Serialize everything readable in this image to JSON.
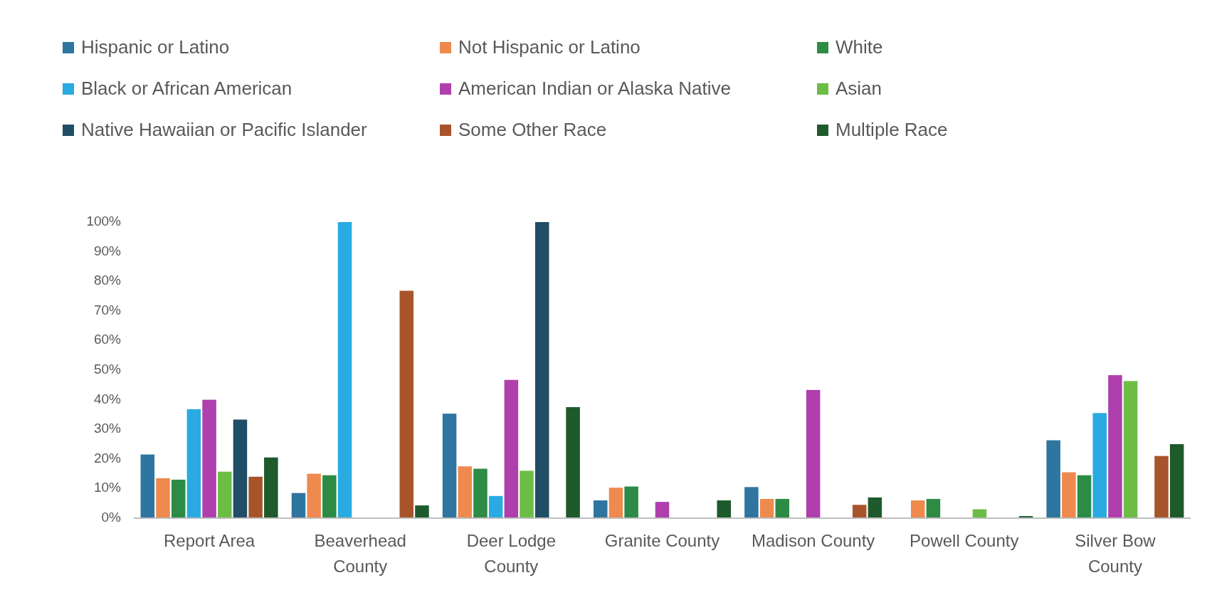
{
  "chart_data": {
    "type": "bar",
    "categories": [
      "Report Area",
      "Beaverhead County",
      "Deer Lodge County",
      "Granite County",
      "Madison County",
      "Powell County",
      "Silver Bow County"
    ],
    "series": [
      {
        "name": "Hispanic or Latino",
        "color": "#2e75a0",
        "values": [
          21.5,
          8.5,
          35.3,
          6,
          10.5,
          0,
          26.3
        ]
      },
      {
        "name": "Not Hispanic or Latino",
        "color": "#ee8a4e",
        "values": [
          13.5,
          15,
          17.5,
          10.3,
          6.5,
          6,
          15.5
        ]
      },
      {
        "name": "White",
        "color": "#2e8b45",
        "values": [
          13,
          14.5,
          16.7,
          10.7,
          6.5,
          6.5,
          14.5
        ]
      },
      {
        "name": "Black or African American",
        "color": "#29abe2",
        "values": [
          36.8,
          100,
          7.5,
          0,
          0,
          0,
          35.5
        ]
      },
      {
        "name": "American Indian or Alaska Native",
        "color": "#b03fae",
        "values": [
          40,
          0,
          46.7,
          5.5,
          43.3,
          0,
          48.3
        ]
      },
      {
        "name": "Asian",
        "color": "#6cbd45",
        "values": [
          15.7,
          0,
          16,
          0,
          0,
          3,
          46.3
        ]
      },
      {
        "name": "Native Hawaiian or Pacific Islander",
        "color": "#1f4e66",
        "values": [
          33.3,
          0,
          100,
          0,
          0,
          0,
          0
        ]
      },
      {
        "name": "Some Other Race",
        "color": "#a8542a",
        "values": [
          14,
          76.8,
          0,
          0,
          4.5,
          0,
          21
        ]
      },
      {
        "name": "Multiple Race",
        "color": "#1e5a2c",
        "values": [
          20.5,
          4.3,
          37.5,
          6,
          7,
          0.7,
          25
        ]
      }
    ],
    "ylim": [
      0,
      100
    ],
    "yticks": [
      {
        "value": 0,
        "label": "0%"
      },
      {
        "value": 10,
        "label": "10%"
      },
      {
        "value": 20,
        "label": "20%"
      },
      {
        "value": 30,
        "label": "30%"
      },
      {
        "value": 40,
        "label": "40%"
      },
      {
        "value": 50,
        "label": "50%"
      },
      {
        "value": 60,
        "label": "60%"
      },
      {
        "value": 70,
        "label": "70%"
      },
      {
        "value": 80,
        "label": "80%"
      },
      {
        "value": 90,
        "label": "90%"
      },
      {
        "value": 100,
        "label": "100%"
      }
    ],
    "grid": false,
    "legend": "top"
  }
}
